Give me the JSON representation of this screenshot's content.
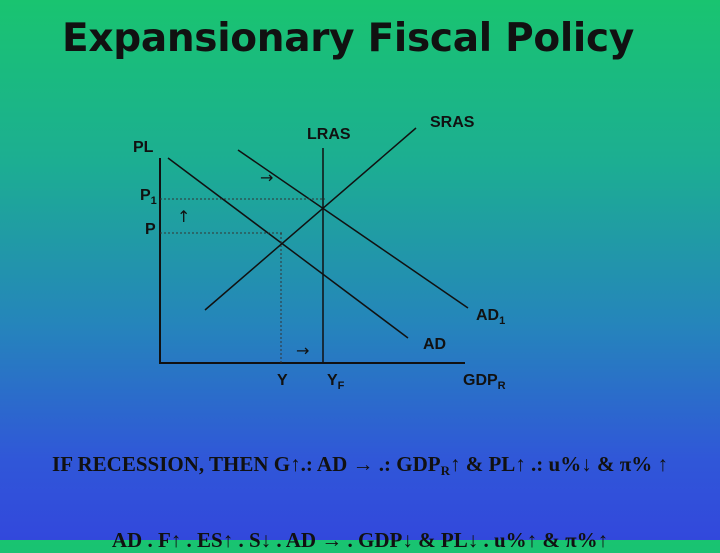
{
  "title": "Expansionary Fiscal Policy",
  "diagram": {
    "labels": {
      "pl": "PL",
      "lras": "LRAS",
      "sras": "SRAS",
      "p1_main": "P",
      "p1_sub": "1",
      "p": "P",
      "ad1_main": "AD",
      "ad1_sub": "1",
      "ad": "AD",
      "y": "Y",
      "yf_main": "Y",
      "yf_sub": "F",
      "gdpr_main": "GDP",
      "gdpr_sub": "R"
    },
    "arrows": {
      "shift_right_top": "→",
      "price_up": "↑",
      "output_right": "→"
    }
  },
  "caption": {
    "part1": "IF RECESSION, THEN G↑.: AD → .: GDP",
    "sub": "R",
    "part2": "↑ & PL↑ .: u%↓ & π% ↑"
  },
  "cutoff_text": "AD . F↑ . ES↑ . S↓ . AD → . GDP↓ & PL↓ . u%↑ & π%↑"
}
